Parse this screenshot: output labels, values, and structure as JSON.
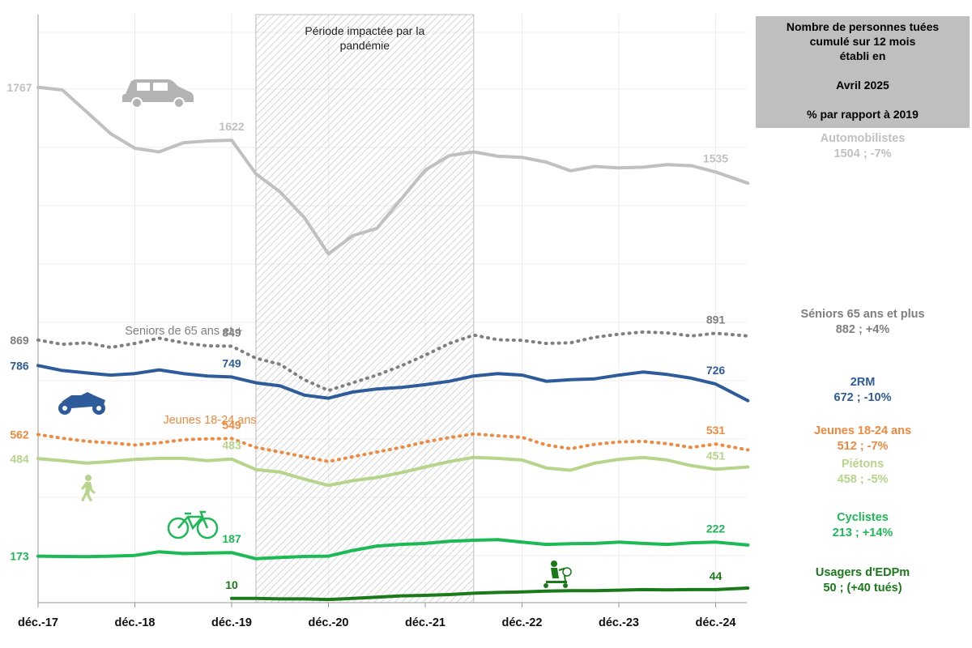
{
  "info_box": {
    "line1": "Nombre de personnes tuées",
    "line2": "cumulé sur 12 mois",
    "line3": "établi en",
    "line4": "",
    "line5": "Avril 2025",
    "line6": "",
    "line7": "% par rapport à 2019"
  },
  "legend": [
    {
      "name": "Automobilistes",
      "value": "1504 ; -7%",
      "color": "#c0c0c0"
    },
    {
      "name": "Séniors 65 ans et plus",
      "value": "882 ; +4%",
      "color": "#7f7f7f"
    },
    {
      "name": "2RM",
      "value": "672 ; -10%",
      "color": "#2e5b9a"
    },
    {
      "name": "Jeunes 18-24 ans",
      "value": "512 ; -7%",
      "color": "#f0883e"
    },
    {
      "name": "Piétons",
      "value": "458 ; -5%",
      "color": "#b6d48a"
    },
    {
      "name": "Cyclistes",
      "value": "213 ; +14%",
      "color": "#1db954"
    },
    {
      "name": "Usagers d'EDPm",
      "value": "50 ; (+40 tués)",
      "color": "#1a7a1a"
    }
  ],
  "chart_data": {
    "type": "line",
    "x_ticks": [
      "déc.-17",
      "déc.-18",
      "déc.-19",
      "déc.-20",
      "déc.-21",
      "déc.-22",
      "déc.-23",
      "déc.-24"
    ],
    "x_range": [
      "2017-12",
      "2025-04"
    ],
    "shaded_period": {
      "from": "2020-03",
      "to": "2022-06",
      "label": "Période impactée par la pandémie"
    },
    "grid": true,
    "series": [
      {
        "name": "Automobilistes",
        "label": "",
        "color": "#c0c0c0",
        "style": "solid",
        "icon": "car-icon",
        "points": [
          [
            "2017-12",
            1767
          ],
          [
            "2018-03",
            1760
          ],
          [
            "2018-06",
            1700
          ],
          [
            "2018-09",
            1640
          ],
          [
            "2018-12",
            1600
          ],
          [
            "2019-03",
            1590
          ],
          [
            "2019-06",
            1615
          ],
          [
            "2019-09",
            1620
          ],
          [
            "2019-12",
            1622
          ],
          [
            "2020-03",
            1530
          ],
          [
            "2020-06",
            1480
          ],
          [
            "2020-09",
            1410
          ],
          [
            "2020-12",
            1310
          ],
          [
            "2021-03",
            1360
          ],
          [
            "2021-06",
            1380
          ],
          [
            "2021-09",
            1460
          ],
          [
            "2021-12",
            1540
          ],
          [
            "2022-03",
            1580
          ],
          [
            "2022-06",
            1590
          ],
          [
            "2022-09",
            1578
          ],
          [
            "2022-12",
            1575
          ],
          [
            "2023-03",
            1562
          ],
          [
            "2023-06",
            1538
          ],
          [
            "2023-09",
            1550
          ],
          [
            "2023-12",
            1546
          ],
          [
            "2024-03",
            1548
          ],
          [
            "2024-06",
            1555
          ],
          [
            "2024-09",
            1552
          ],
          [
            "2024-12",
            1535
          ],
          [
            "2025-04",
            1504
          ]
        ],
        "labels": [
          {
            "x": "2017-12",
            "y": 1767,
            "text": "1767",
            "side": "left"
          },
          {
            "x": "2019-12",
            "y": 1622,
            "text": "1622"
          },
          {
            "x": "2024-12",
            "y": 1535,
            "text": "1535"
          }
        ]
      },
      {
        "name": "Séniors 65 ans et plus",
        "label": "Seniors de 65 ans et +",
        "color": "#7f7f7f",
        "style": "dotted",
        "icon": "",
        "points": [
          [
            "2017-12",
            869
          ],
          [
            "2018-03",
            855
          ],
          [
            "2018-06",
            860
          ],
          [
            "2018-09",
            845
          ],
          [
            "2018-12",
            858
          ],
          [
            "2019-03",
            875
          ],
          [
            "2019-06",
            860
          ],
          [
            "2019-09",
            850
          ],
          [
            "2019-12",
            849
          ],
          [
            "2020-03",
            810
          ],
          [
            "2020-06",
            790
          ],
          [
            "2020-09",
            740
          ],
          [
            "2020-12",
            705
          ],
          [
            "2021-03",
            730
          ],
          [
            "2021-06",
            755
          ],
          [
            "2021-09",
            785
          ],
          [
            "2021-12",
            820
          ],
          [
            "2022-03",
            858
          ],
          [
            "2022-06",
            885
          ],
          [
            "2022-09",
            870
          ],
          [
            "2022-12",
            868
          ],
          [
            "2023-03",
            858
          ],
          [
            "2023-06",
            860
          ],
          [
            "2023-09",
            878
          ],
          [
            "2023-12",
            888
          ],
          [
            "2024-03",
            895
          ],
          [
            "2024-06",
            892
          ],
          [
            "2024-09",
            882
          ],
          [
            "2024-12",
            891
          ],
          [
            "2025-04",
            882
          ]
        ],
        "labels": [
          {
            "x": "2017-12",
            "y": 869,
            "text": "869",
            "side": "left"
          },
          {
            "x": "2019-12",
            "y": 849,
            "text": "849"
          },
          {
            "x": "2024-12",
            "y": 891,
            "text": "891"
          }
        ]
      },
      {
        "name": "2RM",
        "label": "",
        "color": "#2e5b9a",
        "style": "solid",
        "icon": "motorcycle-icon",
        "points": [
          [
            "2017-12",
            786
          ],
          [
            "2018-03",
            770
          ],
          [
            "2018-06",
            762
          ],
          [
            "2018-09",
            755
          ],
          [
            "2018-12",
            760
          ],
          [
            "2019-03",
            772
          ],
          [
            "2019-06",
            760
          ],
          [
            "2019-09",
            752
          ],
          [
            "2019-12",
            749
          ],
          [
            "2020-03",
            730
          ],
          [
            "2020-06",
            720
          ],
          [
            "2020-09",
            690
          ],
          [
            "2020-12",
            680
          ],
          [
            "2021-03",
            700
          ],
          [
            "2021-06",
            710
          ],
          [
            "2021-09",
            715
          ],
          [
            "2021-12",
            724
          ],
          [
            "2022-03",
            735
          ],
          [
            "2022-06",
            752
          ],
          [
            "2022-09",
            760
          ],
          [
            "2022-12",
            755
          ],
          [
            "2023-03",
            735
          ],
          [
            "2023-06",
            740
          ],
          [
            "2023-09",
            743
          ],
          [
            "2023-12",
            755
          ],
          [
            "2024-03",
            765
          ],
          [
            "2024-06",
            757
          ],
          [
            "2024-09",
            745
          ],
          [
            "2024-12",
            726
          ],
          [
            "2025-04",
            672
          ]
        ],
        "labels": [
          {
            "x": "2017-12",
            "y": 786,
            "text": "786",
            "side": "left"
          },
          {
            "x": "2019-12",
            "y": 749,
            "text": "749"
          },
          {
            "x": "2024-12",
            "y": 726,
            "text": "726"
          }
        ]
      },
      {
        "name": "Jeunes 18-24 ans",
        "label": "Jeunes 18-24 ans",
        "color": "#f0883e",
        "style": "dotted",
        "icon": "",
        "points": [
          [
            "2017-12",
            562
          ],
          [
            "2018-03",
            550
          ],
          [
            "2018-06",
            540
          ],
          [
            "2018-09",
            535
          ],
          [
            "2018-12",
            528
          ],
          [
            "2019-03",
            535
          ],
          [
            "2019-06",
            545
          ],
          [
            "2019-09",
            548
          ],
          [
            "2019-12",
            549
          ],
          [
            "2020-03",
            520
          ],
          [
            "2020-06",
            505
          ],
          [
            "2020-09",
            490
          ],
          [
            "2020-12",
            475
          ],
          [
            "2021-03",
            490
          ],
          [
            "2021-06",
            505
          ],
          [
            "2021-09",
            520
          ],
          [
            "2021-12",
            538
          ],
          [
            "2022-03",
            552
          ],
          [
            "2022-06",
            564
          ],
          [
            "2022-09",
            558
          ],
          [
            "2022-12",
            553
          ],
          [
            "2023-03",
            528
          ],
          [
            "2023-06",
            516
          ],
          [
            "2023-09",
            530
          ],
          [
            "2023-12",
            538
          ],
          [
            "2024-03",
            540
          ],
          [
            "2024-06",
            532
          ],
          [
            "2024-09",
            520
          ],
          [
            "2024-12",
            531
          ],
          [
            "2025-04",
            512
          ]
        ],
        "labels": [
          {
            "x": "2017-12",
            "y": 562,
            "text": "562",
            "side": "left"
          },
          {
            "x": "2019-12",
            "y": 549,
            "text": "549"
          },
          {
            "x": "2024-12",
            "y": 531,
            "text": "531"
          }
        ]
      },
      {
        "name": "Piétons",
        "label": "",
        "color": "#b6d48a",
        "style": "solid",
        "icon": "pedestrian-icon",
        "points": [
          [
            "2017-12",
            484
          ],
          [
            "2018-03",
            478
          ],
          [
            "2018-06",
            470
          ],
          [
            "2018-09",
            475
          ],
          [
            "2018-12",
            482
          ],
          [
            "2019-03",
            485
          ],
          [
            "2019-06",
            485
          ],
          [
            "2019-09",
            478
          ],
          [
            "2019-12",
            483
          ],
          [
            "2020-03",
            450
          ],
          [
            "2020-06",
            442
          ],
          [
            "2020-09",
            420
          ],
          [
            "2020-12",
            400
          ],
          [
            "2021-03",
            415
          ],
          [
            "2021-06",
            425
          ],
          [
            "2021-09",
            440
          ],
          [
            "2021-12",
            458
          ],
          [
            "2022-03",
            475
          ],
          [
            "2022-06",
            488
          ],
          [
            "2022-09",
            485
          ],
          [
            "2022-12",
            480
          ],
          [
            "2023-03",
            455
          ],
          [
            "2023-06",
            448
          ],
          [
            "2023-09",
            470
          ],
          [
            "2023-12",
            482
          ],
          [
            "2024-03",
            488
          ],
          [
            "2024-06",
            480
          ],
          [
            "2024-09",
            462
          ],
          [
            "2024-12",
            451
          ],
          [
            "2025-04",
            458
          ]
        ],
        "labels": [
          {
            "x": "2017-12",
            "y": 484,
            "text": "484",
            "side": "left"
          },
          {
            "x": "2019-12",
            "y": 483,
            "text": "483"
          },
          {
            "x": "2024-12",
            "y": 451,
            "text": "451"
          }
        ]
      },
      {
        "name": "Cyclistes",
        "label": "",
        "color": "#1db954",
        "style": "solid",
        "icon": "bicycle-icon",
        "points": [
          [
            "2017-12",
            173
          ],
          [
            "2018-03",
            172
          ],
          [
            "2018-06",
            171
          ],
          [
            "2018-09",
            173
          ],
          [
            "2018-12",
            176
          ],
          [
            "2019-03",
            190
          ],
          [
            "2019-06",
            183
          ],
          [
            "2019-09",
            185
          ],
          [
            "2019-12",
            187
          ],
          [
            "2020-03",
            163
          ],
          [
            "2020-06",
            168
          ],
          [
            "2020-09",
            172
          ],
          [
            "2020-12",
            173
          ],
          [
            "2021-03",
            195
          ],
          [
            "2021-06",
            210
          ],
          [
            "2021-09",
            215
          ],
          [
            "2021-12",
            218
          ],
          [
            "2022-03",
            225
          ],
          [
            "2022-06",
            228
          ],
          [
            "2022-09",
            230
          ],
          [
            "2022-12",
            222
          ],
          [
            "2023-03",
            215
          ],
          [
            "2023-06",
            217
          ],
          [
            "2023-09",
            218
          ],
          [
            "2023-12",
            222
          ],
          [
            "2024-03",
            218
          ],
          [
            "2024-06",
            215
          ],
          [
            "2024-09",
            220
          ],
          [
            "2024-12",
            222
          ],
          [
            "2025-04",
            213
          ]
        ],
        "labels": [
          {
            "x": "2017-12",
            "y": 173,
            "text": "173",
            "side": "left"
          },
          {
            "x": "2019-12",
            "y": 187,
            "text": "187"
          },
          {
            "x": "2024-12",
            "y": 222,
            "text": "222"
          }
        ]
      },
      {
        "name": "Usagers d'EDPm",
        "label": "",
        "color": "#1a7a1a",
        "style": "solid",
        "icon": "scooter-icon",
        "points": [
          [
            "2019-12",
            10
          ],
          [
            "2020-03",
            10
          ],
          [
            "2020-06",
            8
          ],
          [
            "2020-09",
            8
          ],
          [
            "2020-12",
            6
          ],
          [
            "2021-03",
            10
          ],
          [
            "2021-06",
            15
          ],
          [
            "2021-09",
            20
          ],
          [
            "2021-12",
            22
          ],
          [
            "2022-03",
            25
          ],
          [
            "2022-06",
            30
          ],
          [
            "2022-09",
            33
          ],
          [
            "2022-12",
            35
          ],
          [
            "2023-03",
            38
          ],
          [
            "2023-06",
            40
          ],
          [
            "2023-09",
            40
          ],
          [
            "2023-12",
            42
          ],
          [
            "2024-03",
            44
          ],
          [
            "2024-06",
            43
          ],
          [
            "2024-09",
            44
          ],
          [
            "2024-12",
            44
          ],
          [
            "2025-04",
            50
          ]
        ],
        "labels": [
          {
            "x": "2019-12",
            "y": 10,
            "text": "10"
          },
          {
            "x": "2024-12",
            "y": 44,
            "text": "44"
          }
        ]
      }
    ]
  }
}
